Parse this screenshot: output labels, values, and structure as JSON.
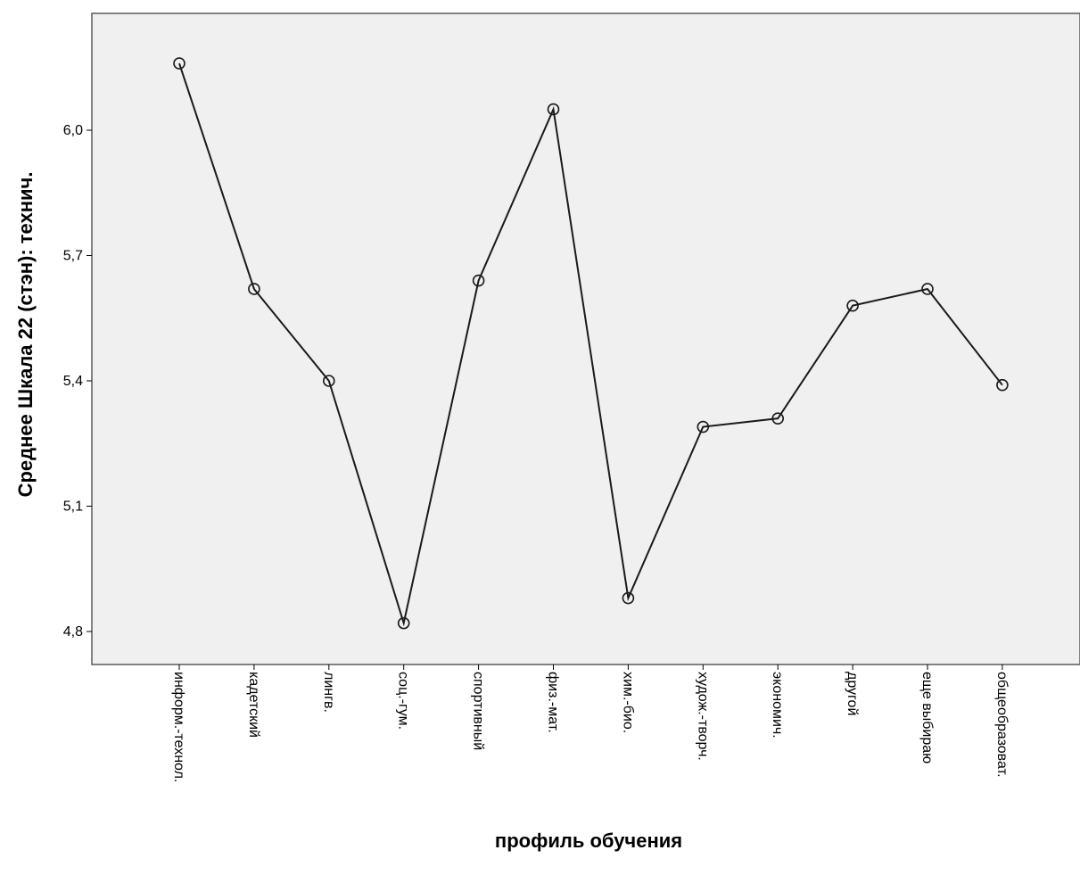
{
  "chart_data": {
    "type": "line",
    "xlabel": "профиль обучения",
    "ylabel": "Среднее Шкала 22 (стэн): технич.",
    "categories": [
      "информ.-технол.",
      "кадетский",
      "лингв.",
      "соц.-гум.",
      "спортивный",
      "физ.-мат.",
      "хим.-био.",
      "худож.-творч.",
      "экономич.",
      "другой",
      "еще выбираю",
      "общеобразоват."
    ],
    "values": [
      6.16,
      5.62,
      5.4,
      4.82,
      5.64,
      6.05,
      4.88,
      5.29,
      5.31,
      5.58,
      5.62,
      5.39
    ],
    "yticks": [
      4.8,
      5.1,
      5.4,
      5.7,
      6.0
    ],
    "ytick_labels": [
      "4,8",
      "5,1",
      "5,4",
      "5,7",
      "6,0"
    ],
    "ylim": [
      4.72,
      6.43
    ],
    "grid": false,
    "markers": "open-circle",
    "colors": {
      "line": "#1a1a1a",
      "plot_background": "#f0f0f0",
      "frame": "#5a5a5a"
    }
  }
}
